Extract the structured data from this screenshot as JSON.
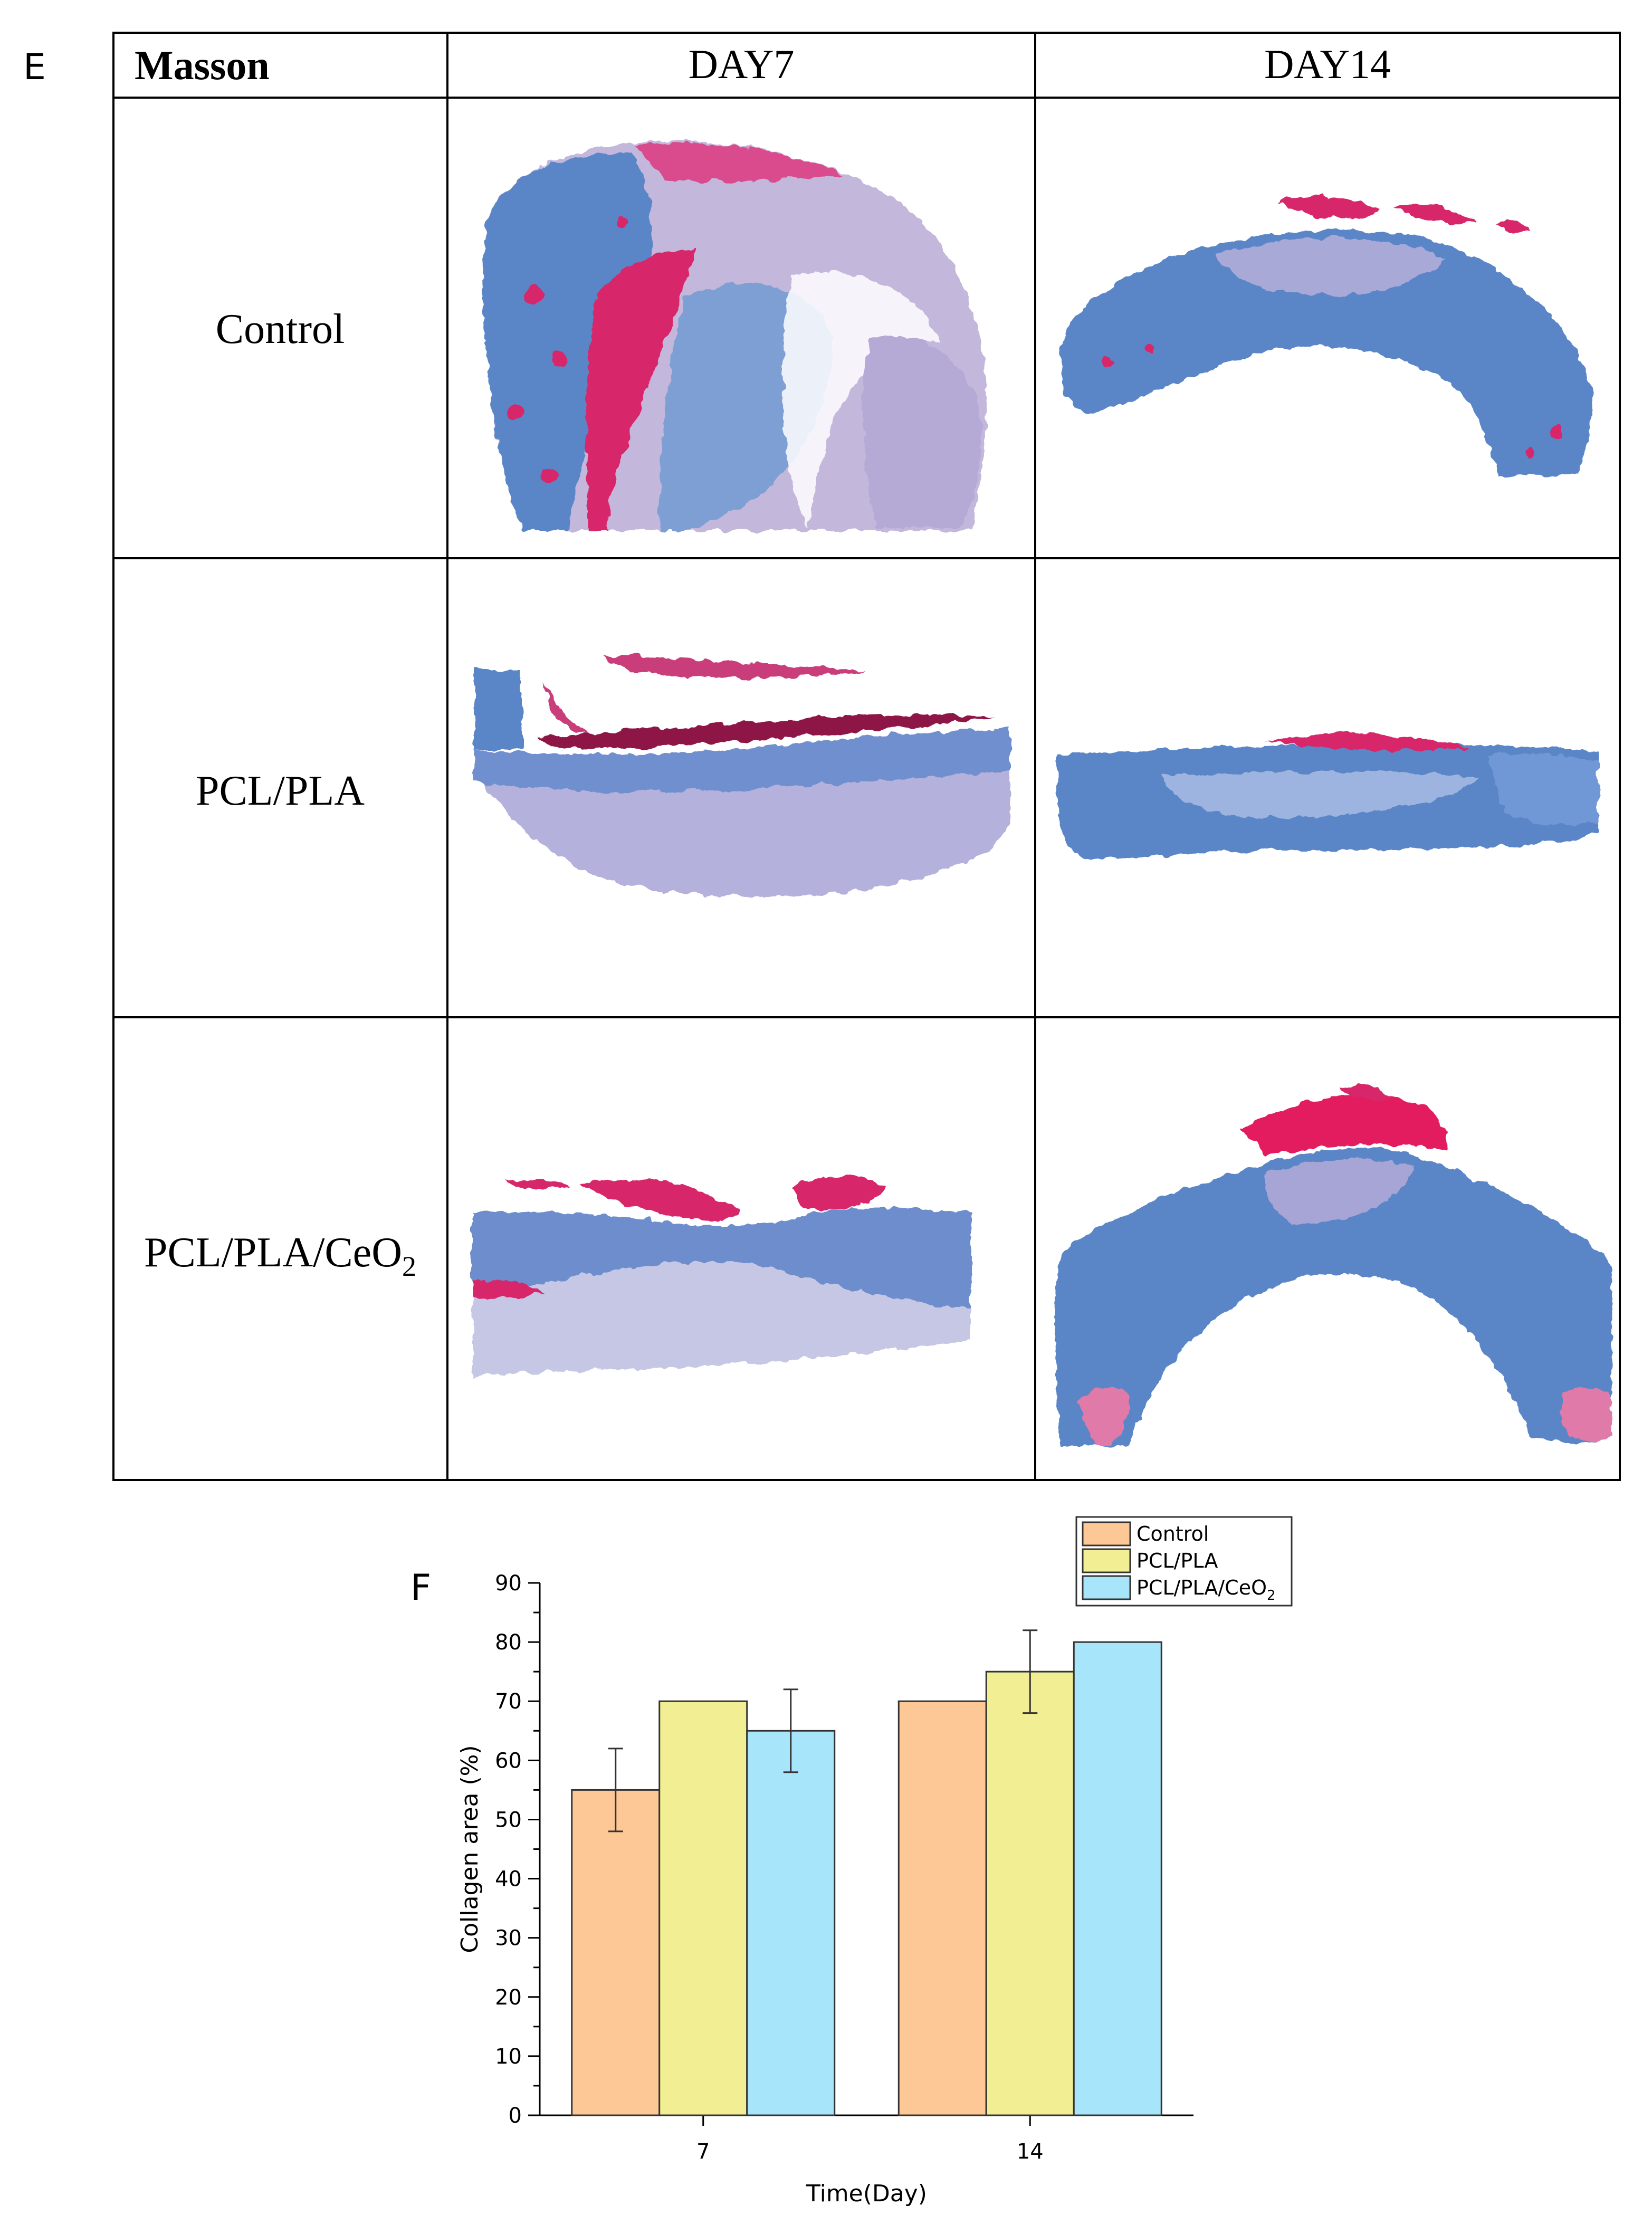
{
  "panel_e": {
    "label": "E",
    "header": {
      "stain": "Masson",
      "columns": [
        "DAY7",
        "DAY14"
      ]
    },
    "rows": [
      {
        "label": "Control"
      },
      {
        "label": "PCL/PLA"
      },
      {
        "label_main": "PCL/PLA/CeO",
        "label_sub": "2"
      }
    ],
    "colors": {
      "tissue_blue": "#5a86c8",
      "collagen_pale": "#b7b3dd",
      "muscle_red": "#d8286a",
      "edge_pink": "#e07aa8"
    }
  },
  "panel_f": {
    "label": "F",
    "chart_data": {
      "type": "bar",
      "categories": [
        "7",
        "14"
      ],
      "series": [
        {
          "name": "Control",
          "values": [
            55,
            70
          ],
          "errors": [
            7,
            null
          ],
          "color": "#fdc896"
        },
        {
          "name": "PCL/PLA",
          "values": [
            70,
            75
          ],
          "errors": [
            null,
            7
          ],
          "color": "#f1ee93"
        },
        {
          "name": "PCL/PLA/CeO2",
          "values": [
            65,
            80
          ],
          "errors": [
            7,
            null
          ],
          "color": "#a7e5fa"
        }
      ],
      "legend": {
        "position": "top-right",
        "entries": [
          "Control",
          "PCL/PLA",
          "PCL/PLA/CeO"
        ],
        "subscript_last": "2"
      },
      "xlabel": "Time(Day)",
      "ylabel": "Collagen area (%)",
      "ylim": [
        0,
        90
      ],
      "yticks": [
        0,
        10,
        20,
        30,
        40,
        50,
        60,
        70,
        80,
        90
      ],
      "grid": false
    }
  }
}
